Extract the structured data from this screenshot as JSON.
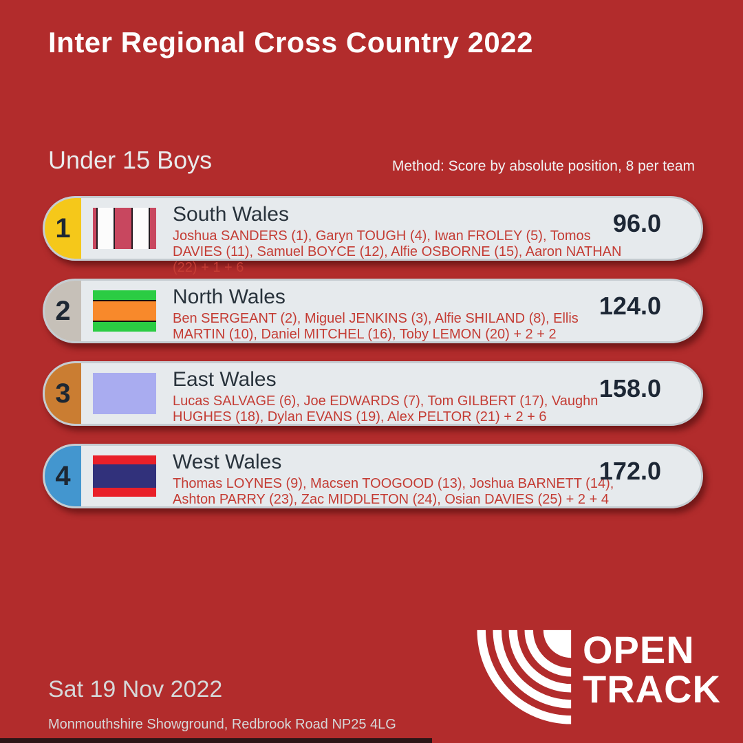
{
  "title": "Inter Regional Cross Country 2022",
  "event": {
    "name": "Under 15 Boys",
    "method": "Method: Score by absolute position, 8 per team"
  },
  "results": [
    {
      "rank": "1",
      "team": "South Wales",
      "athletes": "Joshua SANDERS (1), Garyn TOUGH (4), Iwan FROLEY (5), Tomos DAVIES (11), Samuel BOYCE (12), Alfie OSBORNE (15), Aaron NATHAN (22) + 1 + 6",
      "score": "96.0",
      "medal_color": "#f5c81a",
      "flag": {
        "name": "south-wales-flag",
        "orientation": "vertical",
        "separator": "#241a20",
        "stripes": [
          {
            "color": "#c8475f",
            "weight": 0.5
          },
          {
            "color": "#fcfcfc",
            "weight": 2.3
          },
          {
            "color": "#c8475f",
            "weight": 2.3
          },
          {
            "color": "#fcfcfc",
            "weight": 2.3
          },
          {
            "color": "#c8475f",
            "weight": 0.9
          }
        ]
      }
    },
    {
      "rank": "2",
      "team": "North Wales",
      "athletes": "Ben SERGEANT (2), Miguel JENKINS (3), Alfie SHILAND (8), Ellis MARTIN (10), Daniel MITCHEL (16), Toby LEMON (20) + 2 + 2",
      "score": "124.0",
      "medal_color": "#c6c0b8",
      "flag": {
        "name": "north-wales-flag",
        "orientation": "horizontal",
        "separator": "#101010",
        "stripes": [
          {
            "color": "#2bcc43",
            "weight": 1.1
          },
          {
            "color": "#f8892b",
            "weight": 2.3
          },
          {
            "color": "#2bcc43",
            "weight": 1.1
          }
        ]
      }
    },
    {
      "rank": "3",
      "team": "East Wales",
      "athletes": "Lucas SALVAGE (6), Joe EDWARDS (7), Tom GILBERT (17), Vaughn HUGHES (18), Dylan EVANS (19), Alex PELTOR (21) + 2 + 6",
      "score": "158.0",
      "medal_color": "#ca7d32",
      "flag": {
        "name": "east-wales-flag",
        "orientation": "horizontal",
        "separator": null,
        "stripes": [
          {
            "color": "#a9acf0",
            "weight": 1
          }
        ]
      }
    },
    {
      "rank": "4",
      "team": "West Wales",
      "athletes": "Thomas LOYNES (9), Macsen TOOGOOD (13), Joshua BARNETT (14), Ashton PARRY (23), Zac MIDDLETON (24), Osian DAVIES (25) + 2 + 4",
      "score": "172.0",
      "medal_color": "#4396cf",
      "flag": {
        "name": "west-wales-flag",
        "orientation": "horizontal",
        "separator": null,
        "stripes": [
          {
            "color": "#e92029",
            "weight": 1
          },
          {
            "color": "#31317b",
            "weight": 2.5
          },
          {
            "color": "#e92029",
            "weight": 1
          }
        ]
      }
    }
  ],
  "footer": {
    "date": "Sat 19 Nov 2022",
    "venue": "Monmouthshire Showground, Redbrook Road NP25 4LG",
    "logo": {
      "line1": "OPEN",
      "line2": "TRACK"
    }
  },
  "colors": {
    "background": "#b22c2c",
    "card_bg": "#e6eaed",
    "card_border": "#c5ccd1",
    "athletes_text": "#c43c34",
    "team_text": "#29333c",
    "score_text": "#1d2735",
    "rank_text": "#1d2733",
    "heading_text": "#fdfdfd",
    "muted_text": "#d6d8d9",
    "bottom_bar": "#2c1516",
    "logo_white": "#ffffff"
  }
}
